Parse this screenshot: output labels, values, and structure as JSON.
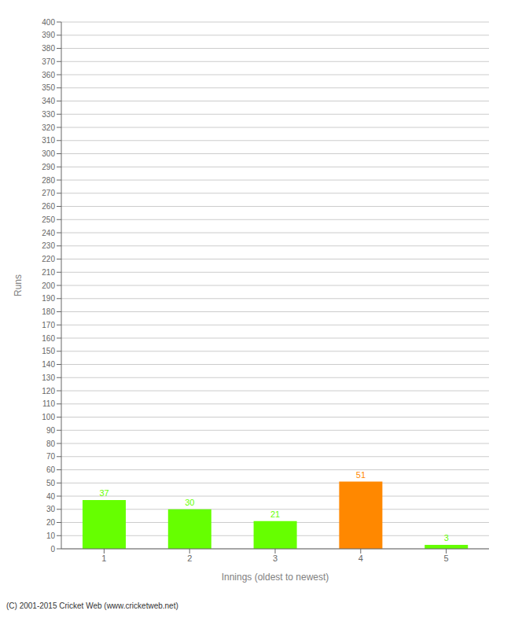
{
  "chart_data": {
    "type": "bar",
    "categories": [
      "1",
      "2",
      "3",
      "4",
      "5"
    ],
    "values": [
      37,
      30,
      21,
      51,
      3
    ],
    "colors": [
      "#66ff00",
      "#66ff00",
      "#66ff00",
      "#ff8800",
      "#66ff00"
    ],
    "x_label": "Innings (oldest to newest)",
    "y_label": "Runs",
    "ylim": [
      0,
      400
    ],
    "yticks": [
      0,
      10,
      20,
      30,
      40,
      50,
      60,
      70,
      80,
      90,
      100,
      110,
      120,
      130,
      140,
      150,
      160,
      170,
      180,
      190,
      200,
      210,
      220,
      230,
      240,
      250,
      260,
      270,
      280,
      290,
      300,
      310,
      320,
      330,
      340,
      350,
      360,
      370,
      380,
      390,
      400
    ],
    "grid": true,
    "data_labels": true,
    "annotations": [
      "(C) 2001-2015 Cricket Web (www.cricketweb.net)"
    ]
  }
}
